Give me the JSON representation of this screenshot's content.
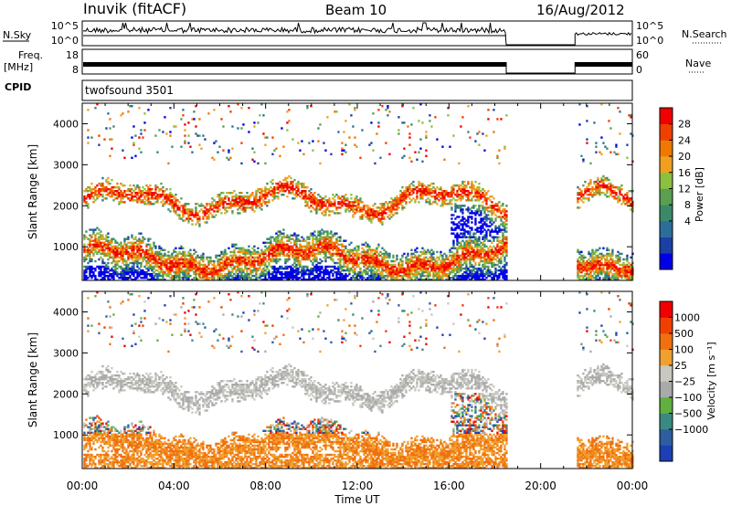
{
  "header": {
    "station": "Inuvik (fitACF)",
    "beam": "Beam 10",
    "date": "16/Aug/2012"
  },
  "top_panels": {
    "nsky_label": "N.Sky",
    "nsky_ticks": [
      "10^5",
      "10^0"
    ],
    "nsearch_label": "N.Search",
    "nsearch_ticks": [
      "10^5",
      "10^0"
    ],
    "freq_label_line1": "Freq.",
    "freq_label_line2": "[MHz]",
    "freq_ticks": [
      "18",
      "8"
    ],
    "nave_label": "Nave",
    "nave_ticks": [
      "60",
      "0"
    ],
    "cpid_label": "CPID",
    "cpid_value": "twofsound 3501"
  },
  "chart_data": [
    {
      "type": "heatmap",
      "panel": "power",
      "ylabel": "Slant Range [km]",
      "yticks": [
        1000,
        2000,
        3000,
        4000
      ],
      "ylim": [
        180,
        4500
      ],
      "xticks": [
        "00:00",
        "04:00",
        "08:00",
        "12:00",
        "16:00",
        "20:00",
        "00:00"
      ],
      "xlim_hours": [
        0,
        24
      ],
      "data_gap_hours": [
        18.5,
        21.5
      ],
      "colorbar": {
        "label": "Power [dB]",
        "ticks": [
          "28",
          "24",
          "20",
          "16",
          "12",
          "8",
          "4"
        ],
        "range": [
          0,
          32
        ],
        "colors": [
          "#0000e6",
          "#1c3fa4",
          "#2c6e9a",
          "#3a8a6a",
          "#5aa050",
          "#8cc040",
          "#f0a020",
          "#f07800",
          "#f04000",
          "#f00000"
        ]
      }
    },
    {
      "type": "heatmap",
      "panel": "velocity",
      "ylabel": "Slant Range [km]",
      "yticks": [
        1000,
        2000,
        3000,
        4000
      ],
      "ylim": [
        180,
        4500
      ],
      "xticks": [
        "00:00",
        "04:00",
        "08:00",
        "12:00",
        "16:00",
        "20:00",
        "00:00"
      ],
      "xlim_hours": [
        0,
        24
      ],
      "xlabel": "Time UT",
      "data_gap_hours": [
        18.5,
        21.5
      ],
      "colorbar": {
        "label": "Velocity [m s⁻¹]",
        "ticks": [
          "1000",
          "500",
          "100",
          "25",
          "−25",
          "−100",
          "−500",
          "−1000"
        ],
        "colors": [
          "#1c3fb4",
          "#2c5ea0",
          "#3a8a80",
          "#60b040",
          "#aaaaaa",
          "#c8c8c0",
          "#f0a030",
          "#f07010",
          "#f04000",
          "#f00000"
        ]
      }
    }
  ]
}
